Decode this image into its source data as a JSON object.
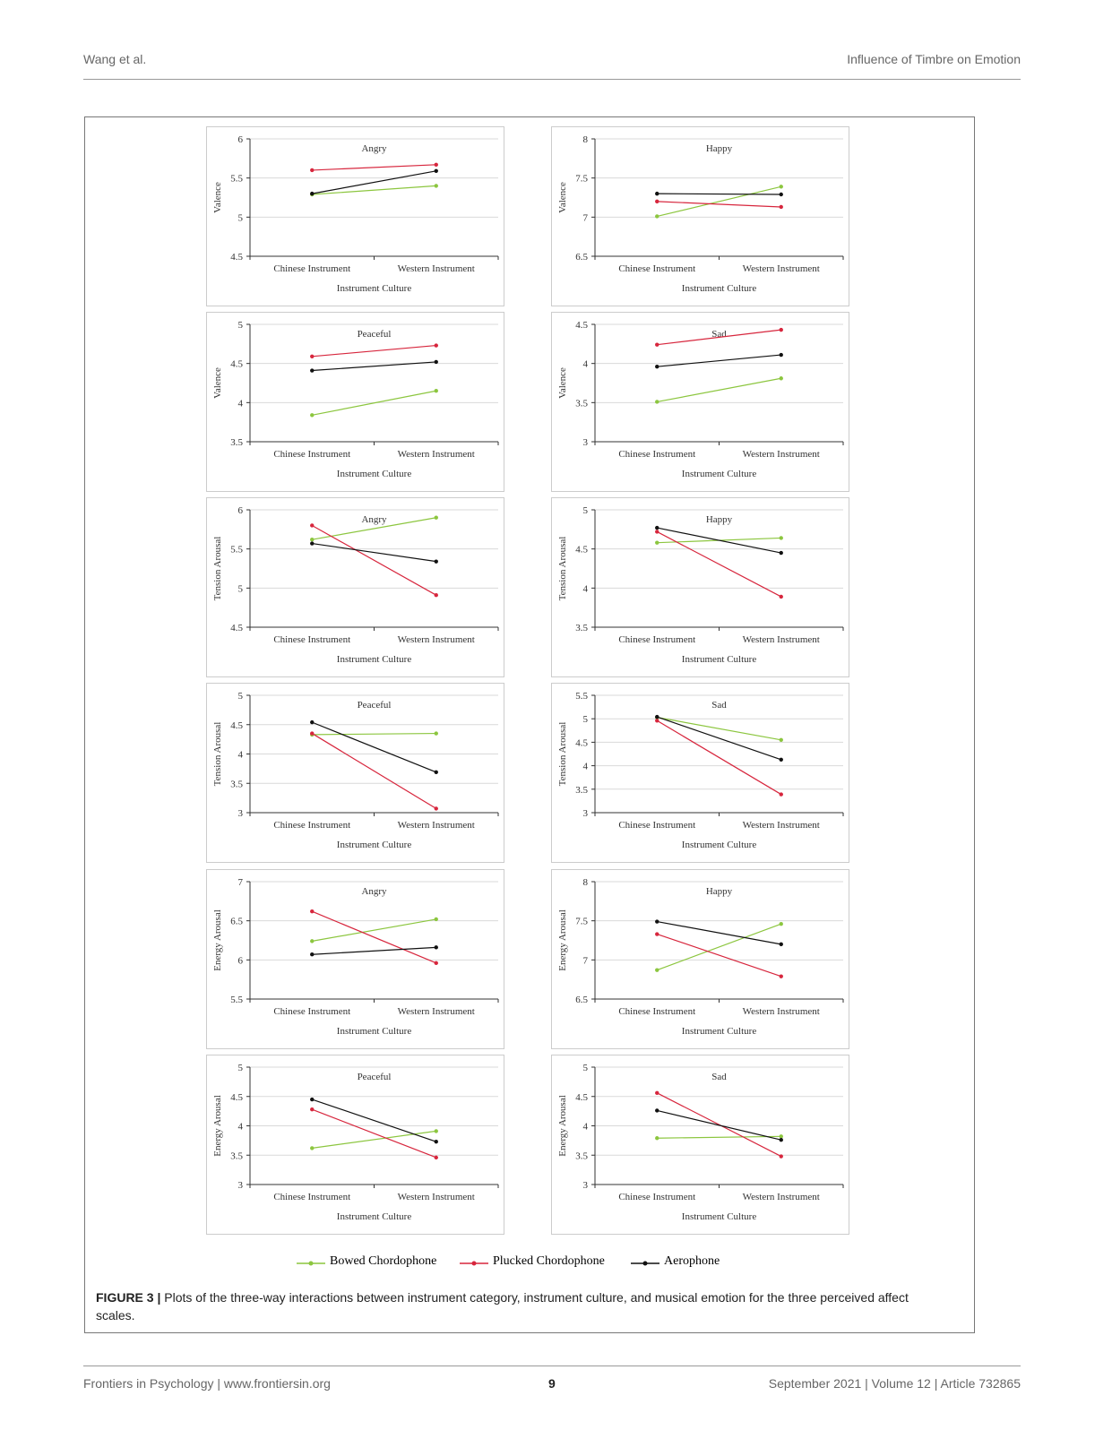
{
  "header": {
    "left": "Wang et al.",
    "right": "Influence of Timbre on Emotion"
  },
  "footer": {
    "left": "Frontiers in Psychology | www.frontiersin.org",
    "page": "9",
    "right": "September 2021 | Volume 12 | Article 732865"
  },
  "figure": {
    "label": "FIGURE 3",
    "separator": "|",
    "caption": "Plots of the three-way interactions between instrument category, instrument culture, and musical emotion for the three perceived affect scales."
  },
  "legend": [
    {
      "name": "Bowed Chordophone",
      "color": "#8cc63f"
    },
    {
      "name": "Plucked Chordophone",
      "color": "#d7263d"
    },
    {
      "name": "Aerophone",
      "color": "#111111"
    }
  ],
  "chart_data": [
    {
      "type": "line",
      "title": "Angry",
      "ylabel": "Valence",
      "xlabel": "Instrument Culture",
      "categories": [
        "Chinese Instrument",
        "Western Instrument"
      ],
      "ylim": [
        4.5,
        6
      ],
      "yticks": [
        "4.5",
        "5",
        "5.5",
        "6"
      ],
      "series": [
        {
          "name": "Bowed Chordophone",
          "values": [
            5.29,
            5.4
          ]
        },
        {
          "name": "Plucked Chordophone",
          "values": [
            5.6,
            5.67
          ]
        },
        {
          "name": "Aerophone",
          "values": [
            5.3,
            5.59
          ]
        }
      ]
    },
    {
      "type": "line",
      "title": "Happy",
      "ylabel": "Valence",
      "xlabel": "Instrument Culture",
      "categories": [
        "Chinese Instrument",
        "Western Instrument"
      ],
      "ylim": [
        6.5,
        8
      ],
      "yticks": [
        "6.5",
        "7",
        "7.5",
        "8"
      ],
      "series": [
        {
          "name": "Bowed Chordophone",
          "values": [
            7.01,
            7.39
          ]
        },
        {
          "name": "Plucked Chordophone",
          "values": [
            7.2,
            7.13
          ]
        },
        {
          "name": "Aerophone",
          "values": [
            7.3,
            7.29
          ]
        }
      ]
    },
    {
      "type": "line",
      "title": "Peaceful",
      "ylabel": "Valence",
      "xlabel": "Instrument Culture",
      "categories": [
        "Chinese Instrument",
        "Western Instrument"
      ],
      "ylim": [
        3.5,
        5
      ],
      "yticks": [
        "3.5",
        "4",
        "4.5",
        "5"
      ],
      "series": [
        {
          "name": "Bowed Chordophone",
          "values": [
            3.84,
            4.15
          ]
        },
        {
          "name": "Plucked Chordophone",
          "values": [
            4.59,
            4.73
          ]
        },
        {
          "name": "Aerophone",
          "values": [
            4.41,
            4.52
          ]
        }
      ]
    },
    {
      "type": "line",
      "title": "Sad",
      "ylabel": "Valence",
      "xlabel": "Instrument Culture",
      "categories": [
        "Chinese Instrument",
        "Western Instrument"
      ],
      "ylim": [
        3,
        4.5
      ],
      "yticks": [
        "3",
        "3.5",
        "4",
        "4.5"
      ],
      "series": [
        {
          "name": "Bowed Chordophone",
          "values": [
            3.51,
            3.81
          ]
        },
        {
          "name": "Plucked Chordophone",
          "values": [
            4.24,
            4.43
          ]
        },
        {
          "name": "Aerophone",
          "values": [
            3.96,
            4.11
          ]
        }
      ]
    },
    {
      "type": "line",
      "title": "Angry",
      "ylabel": "Tension Arousal",
      "xlabel": "Instrument Culture",
      "categories": [
        "Chinese Instrument",
        "Western Instrument"
      ],
      "ylim": [
        4.5,
        6
      ],
      "yticks": [
        "4.5",
        "5",
        "5.5",
        "6"
      ],
      "series": [
        {
          "name": "Bowed Chordophone",
          "values": [
            5.62,
            5.9
          ]
        },
        {
          "name": "Plucked Chordophone",
          "values": [
            5.8,
            4.91
          ]
        },
        {
          "name": "Aerophone",
          "values": [
            5.57,
            5.34
          ]
        }
      ]
    },
    {
      "type": "line",
      "title": "Happy",
      "ylabel": "Tension Arousal",
      "xlabel": "Instrument Culture",
      "categories": [
        "Chinese Instrument",
        "Western Instrument"
      ],
      "ylim": [
        3.5,
        5
      ],
      "yticks": [
        "3.5",
        "4",
        "4.5",
        "5"
      ],
      "series": [
        {
          "name": "Bowed Chordophone",
          "values": [
            4.58,
            4.64
          ]
        },
        {
          "name": "Plucked Chordophone",
          "values": [
            4.72,
            3.89
          ]
        },
        {
          "name": "Aerophone",
          "values": [
            4.77,
            4.45
          ]
        }
      ]
    },
    {
      "type": "line",
      "title": "Peaceful",
      "ylabel": "Tension Arousal",
      "xlabel": "Instrument Culture",
      "categories": [
        "Chinese Instrument",
        "Western Instrument"
      ],
      "ylim": [
        3,
        5
      ],
      "yticks": [
        "3",
        "3.5",
        "4",
        "4.5",
        "5"
      ],
      "series": [
        {
          "name": "Bowed Chordophone",
          "values": [
            4.33,
            4.35
          ]
        },
        {
          "name": "Plucked Chordophone",
          "values": [
            4.35,
            3.07
          ]
        },
        {
          "name": "Aerophone",
          "values": [
            4.54,
            3.69
          ]
        }
      ]
    },
    {
      "type": "line",
      "title": "Sad",
      "ylabel": "Tension Arousal",
      "xlabel": "Instrument Culture",
      "categories": [
        "Chinese Instrument",
        "Western Instrument"
      ],
      "ylim": [
        3,
        5.5
      ],
      "yticks": [
        "3",
        "3.5",
        "4",
        "4.5",
        "5",
        "5.5"
      ],
      "series": [
        {
          "name": "Bowed Chordophone",
          "values": [
            5.03,
            4.55
          ]
        },
        {
          "name": "Plucked Chordophone",
          "values": [
            4.96,
            3.39
          ]
        },
        {
          "name": "Aerophone",
          "values": [
            5.04,
            4.13
          ]
        }
      ]
    },
    {
      "type": "line",
      "title": "Angry",
      "ylabel": "Energy Arousal",
      "xlabel": "Instrument Culture",
      "categories": [
        "Chinese Instrument",
        "Western Instrument"
      ],
      "ylim": [
        5.5,
        7
      ],
      "yticks": [
        "5.5",
        "6",
        "6.5",
        "7"
      ],
      "series": [
        {
          "name": "Bowed Chordophone",
          "values": [
            6.24,
            6.52
          ]
        },
        {
          "name": "Plucked Chordophone",
          "values": [
            6.62,
            5.96
          ]
        },
        {
          "name": "Aerophone",
          "values": [
            6.07,
            6.16
          ]
        }
      ]
    },
    {
      "type": "line",
      "title": "Happy",
      "ylabel": "Energy Arousal",
      "xlabel": "Instrument Culture",
      "categories": [
        "Chinese Instrument",
        "Western Instrument"
      ],
      "ylim": [
        6.5,
        8
      ],
      "yticks": [
        "6.5",
        "7",
        "7.5",
        "8"
      ],
      "series": [
        {
          "name": "Bowed Chordophone",
          "values": [
            6.87,
            7.46
          ]
        },
        {
          "name": "Plucked Chordophone",
          "values": [
            7.33,
            6.79
          ]
        },
        {
          "name": "Aerophone",
          "values": [
            7.49,
            7.2
          ]
        }
      ]
    },
    {
      "type": "line",
      "title": "Peaceful",
      "ylabel": "Energy Arousal",
      "xlabel": "Instrument Culture",
      "categories": [
        "Chinese Instrument",
        "Western Instrument"
      ],
      "ylim": [
        3,
        5
      ],
      "yticks": [
        "3",
        "3.5",
        "4",
        "4.5",
        "5"
      ],
      "series": [
        {
          "name": "Bowed Chordophone",
          "values": [
            3.62,
            3.91
          ]
        },
        {
          "name": "Plucked Chordophone",
          "values": [
            4.28,
            3.46
          ]
        },
        {
          "name": "Aerophone",
          "values": [
            4.45,
            3.73
          ]
        }
      ]
    },
    {
      "type": "line",
      "title": "Sad",
      "ylabel": "Energy Arousal",
      "xlabel": "Instrument Culture",
      "categories": [
        "Chinese Instrument",
        "Western Instrument"
      ],
      "ylim": [
        3,
        5
      ],
      "yticks": [
        "3",
        "3.5",
        "4",
        "4.5",
        "5"
      ],
      "series": [
        {
          "name": "Bowed Chordophone",
          "values": [
            3.79,
            3.82
          ]
        },
        {
          "name": "Plucked Chordophone",
          "values": [
            4.56,
            3.48
          ]
        },
        {
          "name": "Aerophone",
          "values": [
            4.26,
            3.76
          ]
        }
      ]
    }
  ]
}
